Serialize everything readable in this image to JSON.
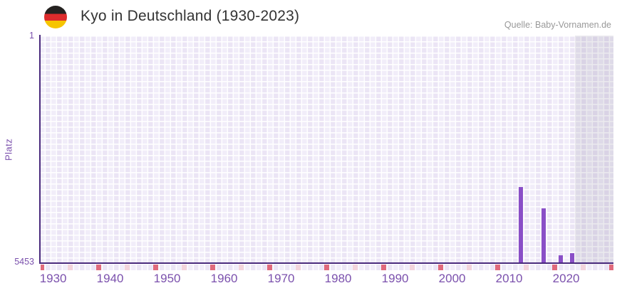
{
  "header": {
    "title": "Kyo in Deutschland (1930-2023)",
    "source": "Quelle: Baby-Vornamen.de",
    "flag_icon": "germany-flag-icon"
  },
  "chart_data": {
    "type": "bar",
    "title": "Kyo in Deutschland (1930-2023)",
    "source": "Quelle: Baby-Vornamen.de",
    "xlabel": "",
    "ylabel": "Platz",
    "grid": true,
    "legend": false,
    "y_axis": {
      "min": 1,
      "max": 5453,
      "inverted": true,
      "tick_labels": [
        "1",
        "5453"
      ]
    },
    "x_axis": {
      "start": 1929,
      "end": 2028,
      "tick_years": [
        1930,
        1940,
        1950,
        1960,
        1970,
        1980,
        1990,
        2000,
        2010,
        2020
      ]
    },
    "series": [
      {
        "name": "Platz",
        "color": "#8a4fc7",
        "points": [
          {
            "year": 2012,
            "rank": 3640
          },
          {
            "year": 2016,
            "rank": 4160
          },
          {
            "year": 2019,
            "rank": 5280
          },
          {
            "year": 2021,
            "rank": 5230
          }
        ]
      }
    ],
    "highlight_region": {
      "from_year": 2022,
      "to_year": 2028,
      "color": "rgba(100,92,125,0.13)"
    },
    "bottom_markers": {
      "dark_color": "#e06a7c",
      "light_color": "#f3d4dc",
      "dark_years": [
        1928,
        1938,
        1948,
        1958,
        1968,
        1978,
        1988,
        1998,
        2008,
        2018,
        2028
      ],
      "light_years": [
        1933,
        1943,
        1953,
        1963,
        1973,
        1983,
        1993,
        2003,
        2013,
        2023
      ]
    }
  },
  "colors": {
    "bar": "#8a4fc7",
    "axis_line": "#4a2b7d",
    "tick_text": "#7b51ad",
    "grid_cell": "#f1edf9",
    "title_text": "#333333",
    "source_text": "#999999",
    "flag_black": "#252220",
    "flag_red": "#dd2c2c",
    "flag_gold": "#f6c500"
  }
}
